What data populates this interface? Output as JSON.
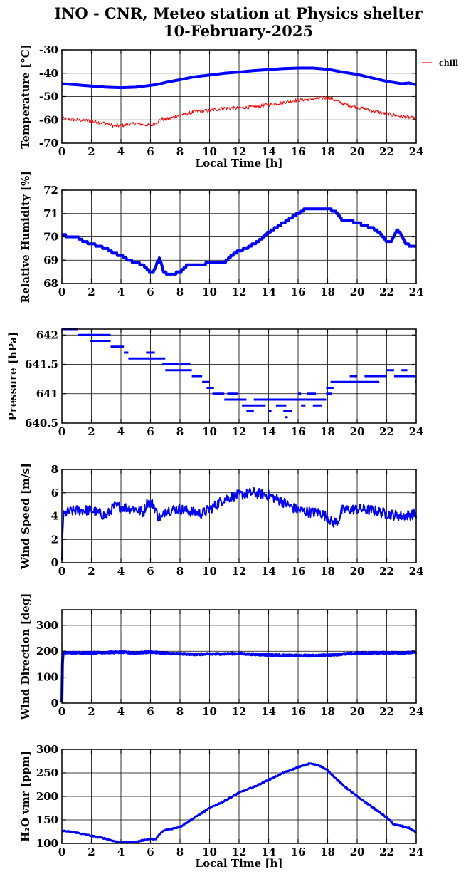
{
  "title": [
    "INO - CNR, Meteo station at Physics shelter",
    "10-February-2025"
  ],
  "colors": {
    "primary": "#0000ff",
    "secondary": "#ff0000",
    "axis": "#000000",
    "grid": "#000000"
  },
  "chart_data": [
    {
      "type": "line",
      "ylabel": "Temperature [°C]",
      "xlabel": "Local Time [h]",
      "xlim": [
        0,
        24
      ],
      "ylim": [
        -70,
        -30
      ],
      "xticks": [
        "0",
        "2",
        "4",
        "6",
        "8",
        "10",
        "12",
        "14",
        "16",
        "18",
        "20",
        "22",
        "24"
      ],
      "yticks": [
        "-70",
        "-60",
        "-50",
        "-40",
        "-30"
      ],
      "grid": true,
      "legend": "right",
      "series": [
        {
          "color": "#0000ff",
          "width": 4,
          "x": [
            0,
            1,
            2,
            3,
            4,
            5,
            6,
            6.5,
            7,
            8,
            9,
            10,
            11,
            12,
            13,
            14,
            15,
            16,
            17,
            18,
            19,
            20,
            21,
            22,
            23,
            23.5,
            24
          ],
          "y": [
            -44.5,
            -45,
            -45.5,
            -46,
            -46.2,
            -46,
            -45.2,
            -44.8,
            -44,
            -42.8,
            -41.5,
            -40.8,
            -40,
            -39.5,
            -38.9,
            -38.5,
            -38,
            -37.8,
            -37.8,
            -38.3,
            -39.5,
            -40.5,
            -42,
            -43.5,
            -44.5,
            -44.2,
            -45
          ]
        },
        {
          "name": "chill",
          "color": "#ff0000",
          "width": 1,
          "noise": 0.8,
          "x": [
            0,
            1,
            2,
            3,
            3.5,
            4,
            5,
            6,
            6.3,
            6.8,
            7,
            8,
            9,
            10,
            11,
            12,
            13,
            14,
            15,
            16,
            17,
            18,
            18.3,
            19,
            20,
            21,
            22,
            23,
            24
          ],
          "y": [
            -59.5,
            -60,
            -60.5,
            -61.5,
            -62.5,
            -62.5,
            -61.5,
            -62.5,
            -61.5,
            -59.5,
            -60,
            -58,
            -56.5,
            -56,
            -55,
            -55,
            -54.5,
            -53.5,
            -52.5,
            -51.5,
            -51,
            -50.5,
            -51,
            -53,
            -54.5,
            -56,
            -57.5,
            -58.5,
            -59.5
          ]
        }
      ]
    },
    {
      "type": "line",
      "ylabel": "Relative Humidity [%]",
      "xlabel": "",
      "xlim": [
        0,
        24
      ],
      "ylim": [
        68,
        72
      ],
      "xticks": [
        "0",
        "2",
        "4",
        "6",
        "8",
        "10",
        "12",
        "14",
        "16",
        "18",
        "20",
        "22",
        "24"
      ],
      "yticks": [
        "68",
        "69",
        "70",
        "71",
        "72"
      ],
      "grid": true,
      "series": [
        {
          "color": "#0000ff",
          "width": 4,
          "step": 0.1,
          "x": [
            0,
            0.5,
            1,
            1.5,
            2,
            2.5,
            3,
            3.5,
            4,
            4.5,
            5,
            5.5,
            6,
            6.2,
            6.6,
            6.9,
            7.2,
            7.5,
            8,
            8.5,
            9,
            9.5,
            10,
            10.5,
            11,
            11.5,
            12,
            12.5,
            13,
            13.5,
            14,
            14.5,
            15,
            15.5,
            16,
            16.5,
            17,
            17.5,
            18,
            18.5,
            19,
            19.5,
            20,
            20.5,
            21,
            21.5,
            22,
            22.3,
            22.7,
            23,
            23.3,
            23.7,
            24
          ],
          "y": [
            70.1,
            70,
            70,
            69.8,
            69.7,
            69.6,
            69.5,
            69.3,
            69.2,
            69,
            68.9,
            68.8,
            68.5,
            68.5,
            69.1,
            68.5,
            68.4,
            68.4,
            68.5,
            68.8,
            68.8,
            68.8,
            68.9,
            68.9,
            68.9,
            69.2,
            69.4,
            69.5,
            69.7,
            69.9,
            70.2,
            70.4,
            70.6,
            70.8,
            71,
            71.2,
            71.2,
            71.2,
            71.2,
            71.1,
            70.7,
            70.7,
            70.6,
            70.5,
            70.4,
            70.2,
            69.8,
            69.8,
            70.3,
            70.1,
            69.7,
            69.6,
            69.6
          ]
        }
      ]
    },
    {
      "type": "scatter",
      "ylabel": "Pressure [hPa]",
      "xlabel": "",
      "xlim": [
        0,
        24
      ],
      "ylim": [
        640.5,
        642.1
      ],
      "xticks": [
        "0",
        "2",
        "4",
        "6",
        "8",
        "10",
        "12",
        "14",
        "16",
        "18",
        "20",
        "22",
        "24"
      ],
      "yticks": [
        "640.5",
        "641",
        "641.5",
        "642"
      ],
      "grid": true,
      "series": [
        {
          "color": "#0000ff",
          "marker": "hbar",
          "segments": [
            [
              0,
              1.1,
              642.1
            ],
            [
              1.1,
              1.9,
              642.0
            ],
            [
              1.9,
              3.3,
              641.9
            ],
            [
              1.7,
              3.3,
              642.0
            ],
            [
              3.3,
              4.2,
              641.8
            ],
            [
              4.2,
              4.5,
              641.7
            ],
            [
              4.5,
              6.8,
              641.6
            ],
            [
              5.7,
              6.3,
              641.7
            ],
            [
              6.8,
              7.9,
              641.5
            ],
            [
              6.8,
              7.0,
              641.6
            ],
            [
              7.0,
              8.8,
              641.4
            ],
            [
              8.0,
              8.7,
              641.5
            ],
            [
              8.8,
              9.5,
              641.3
            ],
            [
              9.5,
              10.0,
              641.2
            ],
            [
              9.8,
              10.3,
              641.1
            ],
            [
              10.2,
              11.0,
              641.0
            ],
            [
              11.0,
              12.5,
              640.9
            ],
            [
              11.2,
              11.9,
              641.0
            ],
            [
              12.2,
              13.8,
              640.8
            ],
            [
              12.5,
              13.0,
              640.7
            ],
            [
              13.0,
              16.5,
              640.9
            ],
            [
              14.5,
              15.2,
              640.8
            ],
            [
              15.0,
              15.6,
              640.7
            ],
            [
              14.0,
              14.2,
              640.7
            ],
            [
              15.1,
              15.3,
              640.6
            ],
            [
              16.0,
              16.2,
              641.0
            ],
            [
              16.2,
              16.5,
              640.8
            ],
            [
              16.5,
              17.9,
              640.9
            ],
            [
              17.0,
              17.6,
              640.8
            ],
            [
              16.6,
              17.2,
              641.0
            ],
            [
              17.9,
              18.3,
              641.0
            ],
            [
              17.9,
              18.4,
              641.1
            ],
            [
              18.2,
              19.0,
              641.2
            ],
            [
              19.0,
              21.3,
              641.2
            ],
            [
              19.5,
              20.0,
              641.3
            ],
            [
              20.5,
              22.0,
              641.3
            ],
            [
              21.3,
              21.5,
              641.2
            ],
            [
              22.0,
              22.5,
              641.4
            ],
            [
              22.5,
              24.0,
              641.3
            ],
            [
              23.0,
              23.4,
              641.4
            ],
            [
              23.9,
              24.0,
              641.2
            ]
          ]
        }
      ]
    },
    {
      "type": "line",
      "ylabel": "Wind Speed [m/s]",
      "xlabel": "",
      "xlim": [
        0,
        24
      ],
      "ylim": [
        0,
        8
      ],
      "xticks": [
        "0",
        "2",
        "4",
        "6",
        "8",
        "10",
        "12",
        "14",
        "16",
        "18",
        "20",
        "22",
        "24"
      ],
      "yticks": [
        "0",
        "2",
        "4",
        "6",
        "8"
      ],
      "grid": true,
      "series": [
        {
          "color": "#0000ff",
          "width": 2,
          "noise": 0.45,
          "dense": true,
          "x": [
            0,
            0.05,
            0.1,
            0.3,
            1,
            2,
            3,
            3.5,
            4,
            5,
            5.5,
            5.8,
            6.2,
            6.5,
            6.8,
            7,
            8,
            9,
            9.5,
            10,
            10.5,
            11,
            12,
            13,
            14,
            15,
            15.5,
            16,
            17,
            17.5,
            18,
            18.3,
            18.7,
            19,
            20,
            21,
            22,
            23,
            24
          ],
          "y": [
            0.1,
            2.8,
            4.0,
            4.3,
            4.5,
            4.5,
            4.0,
            4.8,
            4.8,
            4.6,
            4.3,
            5.2,
            5.0,
            4.0,
            3.8,
            4.5,
            4.6,
            4.3,
            4.2,
            4.6,
            5.0,
            5.5,
            5.8,
            6.0,
            5.8,
            5.2,
            4.8,
            4.5,
            4.3,
            4.3,
            3.9,
            3.4,
            3.6,
            4.5,
            4.6,
            4.5,
            4.2,
            4.0,
            4.2
          ]
        }
      ]
    },
    {
      "type": "line",
      "ylabel": "Wind Direction [deg]",
      "xlabel": "",
      "xlim": [
        0,
        24
      ],
      "ylim": [
        0,
        360
      ],
      "xticks": [
        "0",
        "2",
        "4",
        "6",
        "8",
        "10",
        "12",
        "14",
        "16",
        "18",
        "20",
        "22",
        "24"
      ],
      "yticks": [
        "0",
        "100",
        "200",
        "300"
      ],
      "grid": true,
      "series": [
        {
          "color": "#0000ff",
          "width": 4,
          "noise": 2.5,
          "dense": true,
          "x": [
            0,
            0.05,
            0.15,
            1,
            2,
            3,
            4,
            5,
            6,
            7,
            8,
            9,
            10,
            11,
            12,
            13,
            14,
            15,
            16,
            17,
            18,
            19,
            20,
            21,
            22,
            23,
            24
          ],
          "y": [
            0,
            192,
            194,
            194,
            194,
            195,
            196,
            193,
            197,
            192,
            190,
            188,
            189,
            190,
            191,
            188,
            186,
            184,
            183,
            183,
            185,
            189,
            192,
            193,
            194,
            194,
            195
          ]
        }
      ]
    },
    {
      "type": "line",
      "ylabel": "H₂O vmr [ppm]",
      "xlabel": "Local Time [h]",
      "xlim": [
        0,
        24
      ],
      "ylim": [
        100,
        300
      ],
      "xticks": [
        "0",
        "2",
        "4",
        "6",
        "8",
        "10",
        "12",
        "14",
        "16",
        "18",
        "20",
        "22",
        "24"
      ],
      "yticks": [
        "100",
        "150",
        "200",
        "250",
        "300"
      ],
      "grid": true,
      "series": [
        {
          "color": "#0000ff",
          "width": 3,
          "noise": 1.2,
          "dense": true,
          "x": [
            0,
            1,
            2,
            3,
            3.5,
            4,
            5,
            6,
            6.3,
            6.8,
            7,
            8,
            9,
            10,
            11,
            12,
            13,
            14,
            15,
            16,
            16.8,
            17.5,
            18,
            19,
            20,
            21,
            22,
            22.5,
            23,
            23.5,
            24
          ],
          "y": [
            127,
            123,
            116,
            110,
            105,
            102,
            103,
            110,
            108,
            125,
            128,
            135,
            155,
            175,
            190,
            208,
            220,
            235,
            250,
            262,
            270,
            265,
            255,
            225,
            200,
            178,
            155,
            140,
            137,
            133,
            123
          ]
        }
      ]
    }
  ]
}
